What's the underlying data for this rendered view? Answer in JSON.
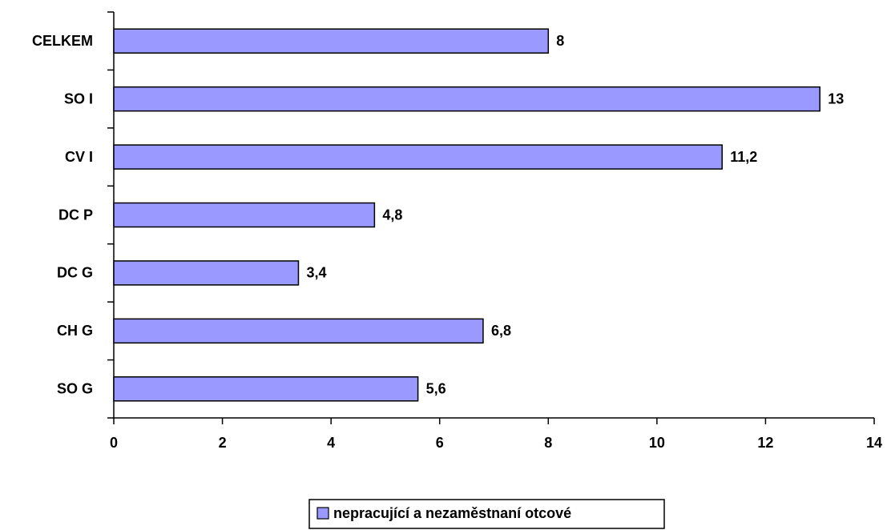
{
  "chart_data": {
    "type": "barh",
    "categories": [
      "CELKEM",
      "SO I",
      "CV I",
      "DC P",
      "DC G",
      "CH G",
      "SO G"
    ],
    "series": [
      {
        "name": "nepracující a nezaměstnaní otcové",
        "color": "#9999ff",
        "values": [
          8,
          13,
          11.2,
          4.8,
          3.4,
          6.8,
          5.6
        ],
        "value_labels": [
          "8",
          "13",
          "11,2",
          "4,8",
          "3,4",
          "6,8",
          "5,6"
        ]
      }
    ],
    "xlim": [
      0,
      14
    ],
    "xticks": [
      0,
      2,
      4,
      6,
      8,
      10,
      12,
      14
    ],
    "grid": false,
    "legend": "bottom"
  }
}
